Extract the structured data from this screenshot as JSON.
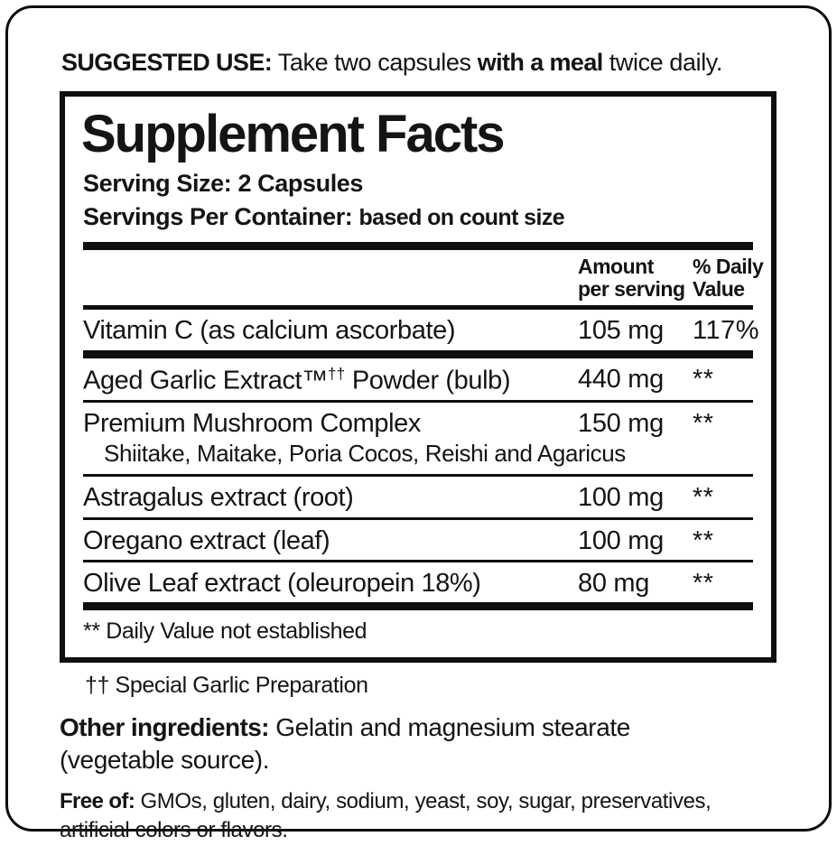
{
  "suggested_use": {
    "label": "SUGGESTED USE:",
    "before": "Take two capsules",
    "bold": "with a meal",
    "after": "twice daily."
  },
  "panel": {
    "title": "Supplement Facts",
    "serving_size": "Serving Size: 2 Capsules",
    "servings_label": "Servings Per Container:",
    "servings_value": "based on count size",
    "columns": {
      "amount": [
        "Amount",
        "per serving"
      ],
      "daily_value": [
        "% Daily",
        "Value"
      ]
    },
    "rows": [
      {
        "name": "Vitamin C (as calcium ascorbate)",
        "amount": "105 mg",
        "dv": "117%",
        "sep": "thick"
      },
      {
        "name": "Aged Garlic Extract™",
        "name_sup": "††",
        "name_rest": " Powder (bulb)",
        "amount": "440 mg",
        "dv": "**",
        "sep": "thin"
      },
      {
        "name": "Premium Mushroom Complex",
        "subline": "Shiitake, Maitake, Poria Cocos, Reishi and Agaricus",
        "amount": "150 mg",
        "dv": "**",
        "sep": "thin"
      },
      {
        "name": "Astragalus extract (root)",
        "amount": "100 mg",
        "dv": "**",
        "sep": "thin"
      },
      {
        "name": "Oregano extract (leaf)",
        "amount": "100 mg",
        "dv": "**",
        "sep": "thin"
      },
      {
        "name": "Olive Leaf extract (oleuropein 18%)",
        "amount": "80 mg",
        "dv": "**",
        "sep": "thick"
      }
    ],
    "footnote": "** Daily Value not established"
  },
  "garlic_note": "†† Special Garlic Preparation",
  "other_ingredients": {
    "label": "Other ingredients:",
    "text": "Gelatin and magnesium stearate\n(vegetable source)."
  },
  "free_of": {
    "label": "Free of:",
    "text": "GMOs, gluten, dairy, sodium, yeast, soy, sugar, preservatives,\nartificial colors or flavors."
  }
}
